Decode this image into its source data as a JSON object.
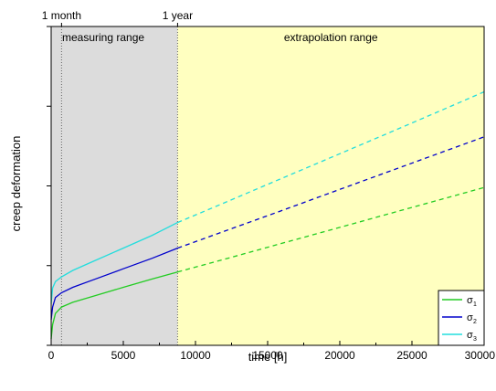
{
  "chart_data": {
    "type": "line",
    "xlabel": "time [h]",
    "ylabel": "creep deformation",
    "xlim": [
      0,
      30000
    ],
    "ylim": [
      0,
      1
    ],
    "x_ticks": [
      0,
      5000,
      10000,
      15000,
      20000,
      25000,
      30000
    ],
    "x_tick_labels": [
      "0",
      "5000",
      "10000",
      "15000",
      "20000",
      "25000",
      "30000"
    ],
    "y_tick_labels": [],
    "top_markers": [
      {
        "label": "1 month",
        "x": 720
      },
      {
        "label": "1 year",
        "x": 8760
      }
    ],
    "regions": [
      {
        "label": "measuring range",
        "x_start": 0,
        "x_end": 8760,
        "color": "#dcdcdc"
      },
      {
        "label": "extrapolation range",
        "x_start": 8760,
        "x_end": 30000,
        "color": "#ffffc0"
      }
    ],
    "measured_until": 8760,
    "series": [
      {
        "name": "σ1",
        "label_main": "σ",
        "label_sub": "1",
        "color": "#22cc22",
        "x": [
          0,
          100,
          300,
          720,
          1500,
          3000,
          5000,
          7000,
          8760,
          12000,
          16000,
          20000,
          24000,
          28000,
          30000
        ],
        "values": [
          0.02,
          0.065,
          0.1,
          0.12,
          0.135,
          0.155,
          0.182,
          0.208,
          0.23,
          0.27,
          0.32,
          0.37,
          0.42,
          0.47,
          0.495
        ]
      },
      {
        "name": "σ2",
        "label_main": "σ",
        "label_sub": "2",
        "color": "#0000cc",
        "x": [
          0,
          100,
          300,
          720,
          1500,
          3000,
          5000,
          7000,
          8760,
          12000,
          16000,
          20000,
          24000,
          28000,
          30000
        ],
        "values": [
          0.08,
          0.12,
          0.15,
          0.165,
          0.182,
          0.207,
          0.24,
          0.273,
          0.305,
          0.358,
          0.423,
          0.489,
          0.555,
          0.621,
          0.654
        ]
      },
      {
        "name": "σ3",
        "label_main": "σ",
        "label_sub": "3",
        "color": "#22dddd",
        "x": [
          0,
          100,
          300,
          720,
          1500,
          3000,
          5000,
          7000,
          8760,
          12000,
          16000,
          20000,
          24000,
          28000,
          30000
        ],
        "values": [
          0.13,
          0.18,
          0.2,
          0.215,
          0.235,
          0.265,
          0.305,
          0.345,
          0.385,
          0.447,
          0.524,
          0.601,
          0.678,
          0.756,
          0.795
        ]
      }
    ],
    "legend": "bottom-right",
    "grid": false
  }
}
